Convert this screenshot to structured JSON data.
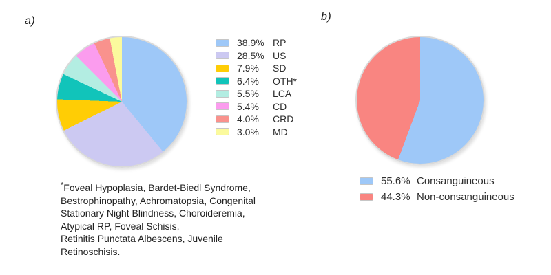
{
  "page": {
    "background": "#ffffff"
  },
  "panel_a": {
    "label": "a)",
    "footnote_marker": "*",
    "footnote": "Foveal Hypoplasia, Bardet-Biedl Syndrome,\nBestrophinopathy, Achromatopsia, Congenital\nStationary Night Blindness, Choroideremia,\nAtypical RP, Foveal Schisis,\nRetinitis Punctata Albescens, Juvenile\nRetinoschisis."
  },
  "panel_b": {
    "label": "b)"
  },
  "chart_data": [
    {
      "type": "pie",
      "panel": "a",
      "start_angle_deg": 0,
      "direction": "clockwise",
      "legend_position": "right",
      "slices": [
        {
          "label": "RP",
          "pct": 38.9,
          "pct_text": "38.9%",
          "color": "#9EC8F8"
        },
        {
          "label": "US",
          "pct": 28.5,
          "pct_text": "28.5%",
          "color": "#CCC9F2"
        },
        {
          "label": "SD",
          "pct": 7.9,
          "pct_text": "7.9%",
          "color": "#FFCD05"
        },
        {
          "label": "OTH*",
          "pct": 6.4,
          "pct_text": "6.4%",
          "color": "#11C4BA"
        },
        {
          "label": "LCA",
          "pct": 5.5,
          "pct_text": "5.5%",
          "color": "#B3EDE2"
        },
        {
          "label": "CD",
          "pct": 5.4,
          "pct_text": "5.4%",
          "color": "#FB9CEE"
        },
        {
          "label": "CRD",
          "pct": 4.0,
          "pct_text": "4.0%",
          "color": "#F9928D"
        },
        {
          "label": "MD",
          "pct": 3.0,
          "pct_text": "3.0%",
          "color": "#FBFA9D"
        }
      ]
    },
    {
      "type": "pie",
      "panel": "b",
      "start_angle_deg": 0,
      "direction": "clockwise",
      "legend_position": "bottom",
      "slices": [
        {
          "label": "Consanguineous",
          "pct": 55.6,
          "pct_text": "55.6%",
          "color": "#9EC8F8"
        },
        {
          "label": "Non-consanguineous",
          "pct": 44.3,
          "pct_text": "44.3%",
          "color": "#F98581"
        }
      ]
    }
  ]
}
